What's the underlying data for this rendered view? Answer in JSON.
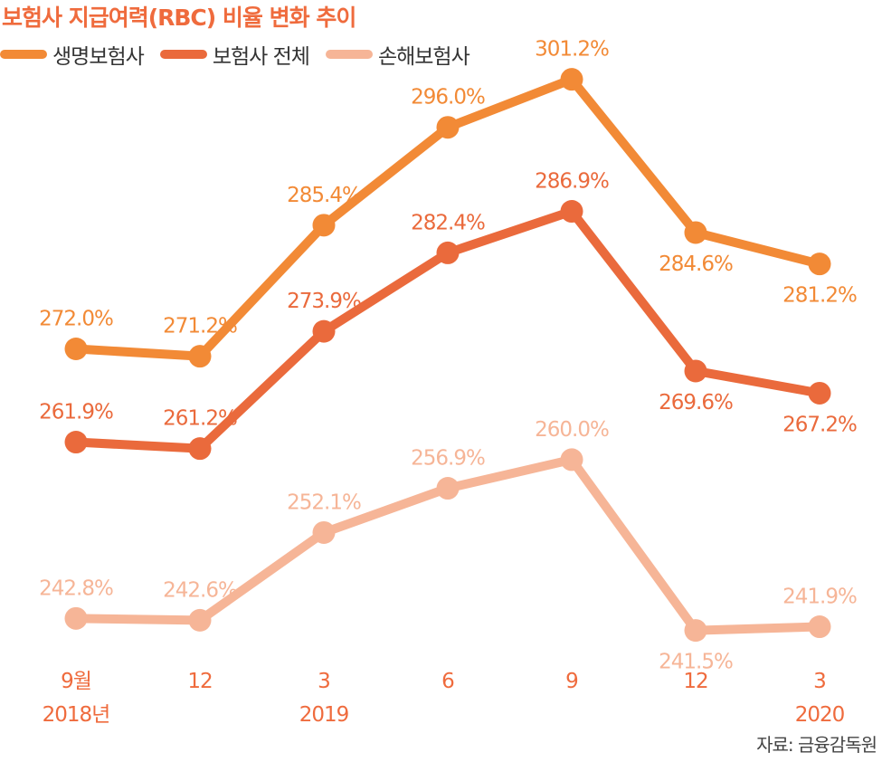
{
  "title": "보험사 지급여력(RBC) 비율 변화 추이",
  "source": "자료: 금융감독원",
  "colors": {
    "title": "#ef6b3d",
    "axis_text": "#ef6b3d"
  },
  "chart_data": {
    "type": "line",
    "title": "보험사 지급여력(RBC) 비율 변화 추이",
    "categories": [
      "2018-09",
      "2018-12",
      "2019-03",
      "2019-06",
      "2019-09",
      "2019-12",
      "2020-03"
    ],
    "tick_labels": [
      {
        "top": "9월",
        "bottom": "2018년"
      },
      {
        "top": "12",
        "bottom": ""
      },
      {
        "top": "3",
        "bottom": "2019"
      },
      {
        "top": "6",
        "bottom": ""
      },
      {
        "top": "9",
        "bottom": ""
      },
      {
        "top": "12",
        "bottom": ""
      },
      {
        "top": "3",
        "bottom": "2020"
      }
    ],
    "unit": "%",
    "legend_position": "top-left",
    "grid": false,
    "series": [
      {
        "name": "생명보험사",
        "color": "#f28a36",
        "values": [
          272.0,
          271.2,
          285.4,
          296.0,
          301.2,
          284.6,
          281.2
        ],
        "labels": [
          "272.0%",
          "271.2%",
          "285.4%",
          "296.0%",
          "301.2%",
          "284.6%",
          "281.2%"
        ],
        "label_side": [
          "above",
          "above",
          "above",
          "above",
          "above",
          "below",
          "below"
        ]
      },
      {
        "name": "보험사 전체",
        "color": "#ea6a3c",
        "values": [
          261.9,
          261.2,
          273.9,
          282.4,
          286.9,
          269.6,
          267.2
        ],
        "labels": [
          "261.9%",
          "261.2%",
          "273.9%",
          "282.4%",
          "286.9%",
          "269.6%",
          "267.2%"
        ],
        "label_side": [
          "above",
          "above",
          "above",
          "above",
          "above",
          "below",
          "below"
        ]
      },
      {
        "name": "손해보험사",
        "color": "#f6b597",
        "values": [
          242.8,
          242.6,
          252.1,
          256.9,
          260.0,
          241.5,
          241.9
        ],
        "labels": [
          "242.8%",
          "242.6%",
          "252.1%",
          "256.9%",
          "260.0%",
          "241.5%",
          "241.9%"
        ],
        "label_side": [
          "above",
          "above",
          "above",
          "above",
          "above",
          "below",
          "above"
        ]
      }
    ]
  }
}
